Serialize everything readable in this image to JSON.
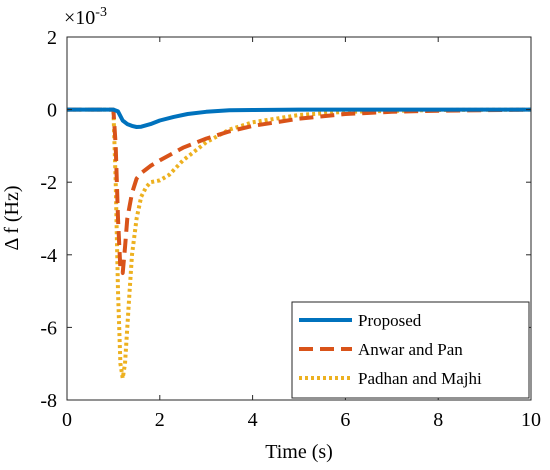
{
  "chart_data": {
    "type": "line",
    "title": "",
    "xlabel": "Time (s)",
    "ylabel": "Δ f (Hz)",
    "y_exponent_label": "×10",
    "y_exponent_power": "-3",
    "xlim": [
      0,
      10
    ],
    "ylim": [
      -8,
      2
    ],
    "xticks": [
      0,
      2,
      4,
      6,
      8,
      10
    ],
    "yticks": [
      -8,
      -6,
      -4,
      -2,
      0,
      2
    ],
    "grid": false,
    "legend_position": "bottom-right",
    "series": [
      {
        "name": "Proposed",
        "color": "#0072BD",
        "style": "solid",
        "x": [
          0,
          1.0,
          1.1,
          1.2,
          1.3,
          1.4,
          1.5,
          1.6,
          1.8,
          2.0,
          2.3,
          2.6,
          3.0,
          3.5,
          4.0,
          5.0,
          6.0,
          8.0,
          10.0
        ],
        "y": [
          0,
          0,
          -0.05,
          -0.3,
          -0.4,
          -0.45,
          -0.48,
          -0.47,
          -0.4,
          -0.3,
          -0.2,
          -0.12,
          -0.06,
          -0.02,
          -0.01,
          0,
          0,
          0,
          0
        ]
      },
      {
        "name": "Anwar and Pan",
        "color": "#D95319",
        "style": "dashed",
        "x": [
          0,
          1.0,
          1.05,
          1.1,
          1.15,
          1.2,
          1.25,
          1.3,
          1.4,
          1.5,
          1.6,
          1.7,
          1.8,
          2.0,
          2.5,
          3.0,
          3.5,
          4.0,
          5.0,
          6.0,
          7.0,
          8.0,
          10.0
        ],
        "y": [
          0,
          0,
          -1.0,
          -3.0,
          -4.4,
          -4.5,
          -3.8,
          -3.0,
          -2.3,
          -1.9,
          -1.75,
          -1.65,
          -1.55,
          -1.4,
          -1.05,
          -0.8,
          -0.6,
          -0.45,
          -0.25,
          -0.12,
          -0.06,
          -0.03,
          0
        ]
      },
      {
        "name": "Padhan and Majhi",
        "color": "#EDB120",
        "style": "dotted",
        "x": [
          0,
          1.0,
          1.05,
          1.1,
          1.15,
          1.2,
          1.25,
          1.3,
          1.35,
          1.4,
          1.5,
          1.6,
          1.7,
          1.8,
          2.0,
          2.2,
          2.5,
          3.0,
          3.5,
          4.0,
          5.0,
          6.0,
          8.0,
          10.0
        ],
        "y": [
          0,
          0,
          -2.0,
          -5.0,
          -7.0,
          -7.4,
          -7.0,
          -6.0,
          -5.0,
          -4.0,
          -3.0,
          -2.4,
          -2.15,
          -2.0,
          -1.95,
          -1.8,
          -1.4,
          -0.9,
          -0.55,
          -0.35,
          -0.15,
          -0.06,
          -0.01,
          0
        ]
      }
    ]
  }
}
